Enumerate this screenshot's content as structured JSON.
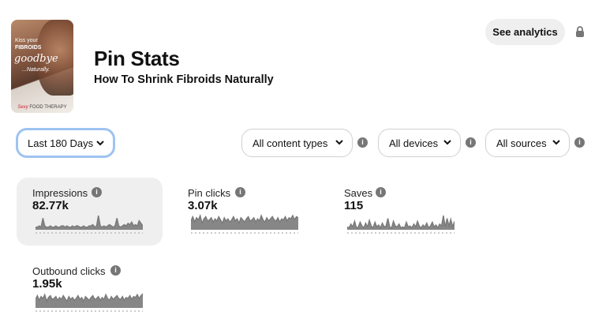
{
  "pin": {
    "thumbnail": {
      "line1": "Kiss your",
      "line2": "FIBROIDS",
      "line3": "goodbye",
      "line4": "...Naturally.",
      "brand_script": "Sexy",
      "brand_rest": "FOOD THERAPY"
    },
    "title": "Pin Stats",
    "subtitle": "How To Shrink Fibroids Naturally"
  },
  "header": {
    "see_analytics_label": "See analytics",
    "lock_icon": "lock-icon"
  },
  "filters": {
    "period": "Last 180 Days",
    "content_types": "All content types",
    "devices": "All devices",
    "sources": "All sources",
    "info_icon_glyph": "i"
  },
  "stats": [
    {
      "label": "Impressions",
      "value": "82.77k",
      "active": true,
      "trend": [
        2,
        2,
        3,
        2,
        9,
        3,
        2,
        2,
        3,
        2,
        2,
        3,
        2,
        2,
        3,
        3,
        2,
        3,
        2,
        2,
        3,
        2,
        3,
        3,
        2,
        2,
        3,
        2,
        2,
        3,
        3,
        4,
        2,
        3,
        11,
        3,
        2,
        3,
        2,
        3,
        4,
        3,
        2,
        3,
        9,
        3,
        2,
        3,
        4,
        3,
        5,
        4,
        6,
        3,
        4,
        3,
        7,
        5,
        3
      ]
    },
    {
      "label": "Pin clicks",
      "value": "3.07k",
      "active": false,
      "trend": [
        8,
        12,
        7,
        11,
        9,
        13,
        6,
        10,
        12,
        8,
        9,
        11,
        7,
        10,
        8,
        12,
        9,
        6,
        11,
        8,
        10,
        7,
        9,
        12,
        8,
        10,
        6,
        11,
        9,
        7,
        10,
        12,
        8,
        9,
        11,
        7,
        10,
        8,
        13,
        9,
        7,
        11,
        8,
        10,
        12,
        9,
        8,
        11,
        7,
        10,
        9,
        12,
        8,
        11,
        10,
        13,
        9,
        12,
        11
      ]
    },
    {
      "label": "Saves",
      "value": "115",
      "active": false,
      "trend": [
        3,
        2,
        6,
        3,
        9,
        2,
        3,
        8,
        4,
        2,
        7,
        3,
        10,
        4,
        2,
        8,
        3,
        5,
        2,
        7,
        3,
        4,
        12,
        3,
        2,
        9,
        4,
        3,
        6,
        2,
        3,
        2,
        8,
        3,
        4,
        2,
        6,
        3,
        9,
        4,
        2,
        5,
        3,
        7,
        2,
        4,
        8,
        3,
        5,
        2,
        6,
        4,
        15,
        3,
        12,
        4,
        11,
        3,
        9
      ]
    },
    {
      "label": "Outbound clicks",
      "value": "1.95k",
      "active": false,
      "trend": [
        9,
        13,
        8,
        12,
        10,
        14,
        7,
        11,
        13,
        9,
        10,
        12,
        8,
        11,
        9,
        13,
        10,
        7,
        12,
        9,
        11,
        8,
        10,
        13,
        9,
        11,
        7,
        12,
        10,
        8,
        11,
        13,
        9,
        10,
        12,
        8,
        11,
        9,
        14,
        10,
        8,
        12,
        9,
        11,
        13,
        10,
        9,
        12,
        8,
        11,
        10,
        13,
        9,
        12,
        11,
        14,
        10,
        13,
        15
      ]
    }
  ],
  "colors": {
    "accent_focus": "#9ec3f2",
    "card_active_bg": "#efefef",
    "sparkline": "#7a7a7a",
    "info_icon": "#767676"
  }
}
